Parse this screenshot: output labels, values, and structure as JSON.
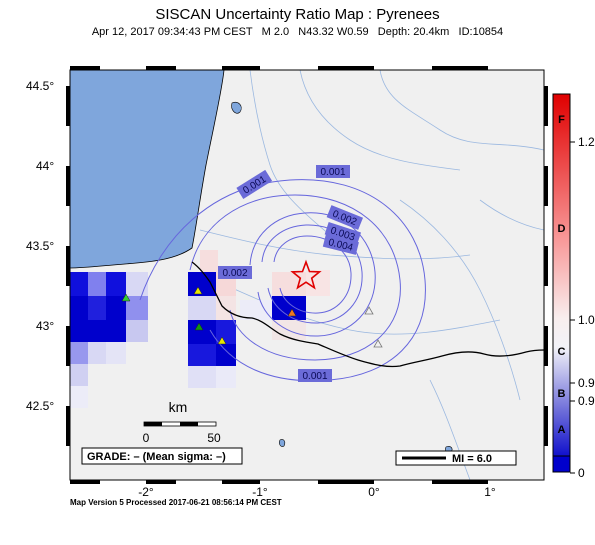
{
  "title": "SISCAN Uncertainty Ratio Map : Pyrenees",
  "subtitle": {
    "date": "Apr 12, 2017 09:34:43 PM CEST",
    "magnitude": "M 2.0",
    "location": "N43.32 W0.59",
    "depth": "Depth: 20.4km",
    "id": "ID:10854"
  },
  "footer": "Map Version 5 Processed 2017-06-21 08:56:14 PM CEST",
  "axes": {
    "lat_labels": [
      "44.5°",
      "44°",
      "43.5°",
      "43°",
      "42.5°"
    ],
    "lon_labels": [
      "-2°",
      "-1°",
      "0°",
      "1°"
    ]
  },
  "contours": [
    {
      "label": "0.001"
    },
    {
      "label": "0.001"
    },
    {
      "label": "0.002"
    },
    {
      "label": "0.003"
    },
    {
      "label": "0.004"
    },
    {
      "label": "0.002"
    },
    {
      "label": "0.001"
    }
  ],
  "scale_bar": {
    "unit": "km",
    "start": "0",
    "end": "50"
  },
  "grade_box": "GRADE: – (Mean sigma: –)",
  "mi_legend": "MI = 6.0",
  "colorbar": {
    "letters": [
      "F",
      "D",
      "C",
      "B",
      "A"
    ],
    "values": [
      "1.2",
      "1.0",
      "0.9",
      "0.9",
      "0"
    ]
  },
  "colors": {
    "ocean": "#7fa6dc",
    "land": "#f0f0f0",
    "cell_blue": "#0000cc",
    "epicenter": "#e00000",
    "contour": "#6666dd"
  }
}
